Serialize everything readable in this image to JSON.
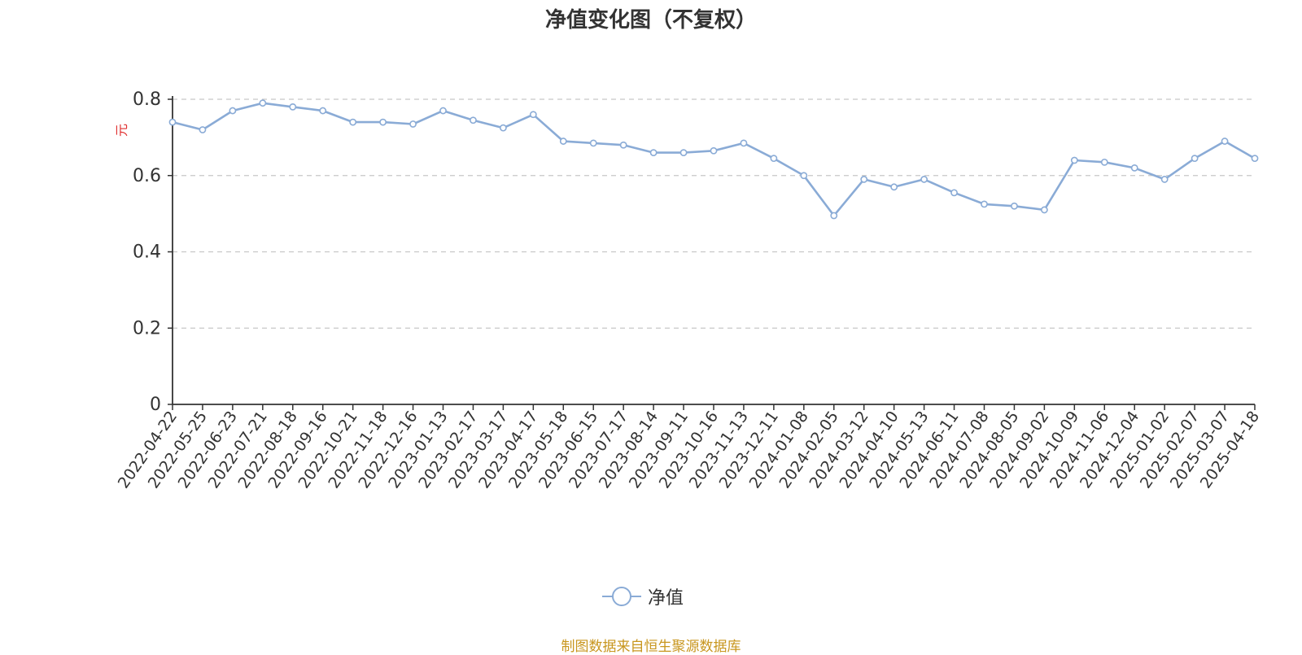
{
  "chart_data": {
    "type": "line",
    "title": "净值变化图（不复权）",
    "ylabel": "元",
    "ylim": [
      0,
      0.8
    ],
    "yticks": [
      0,
      0.2,
      0.4,
      0.6,
      0.8
    ],
    "ytick_labels": [
      "0",
      "0.2",
      "0.4",
      "0.6",
      "0.8"
    ],
    "grid": true,
    "legend_position": "bottom-center",
    "source_note": "制图数据来自恒生聚源数据库",
    "line_color": "#8aabd6",
    "x": [
      "2022-04-22",
      "2022-05-25",
      "2022-06-23",
      "2022-07-21",
      "2022-08-18",
      "2022-09-16",
      "2022-10-21",
      "2022-11-18",
      "2022-12-16",
      "2023-01-13",
      "2023-02-17",
      "2023-03-17",
      "2023-04-17",
      "2023-05-18",
      "2023-06-15",
      "2023-07-17",
      "2023-08-14",
      "2023-09-11",
      "2023-10-16",
      "2023-11-13",
      "2023-12-11",
      "2024-01-08",
      "2024-02-05",
      "2024-03-12",
      "2024-04-10",
      "2024-05-13",
      "2024-06-11",
      "2024-07-08",
      "2024-08-05",
      "2024-09-02",
      "2024-10-09",
      "2024-11-06",
      "2024-12-04",
      "2025-01-02",
      "2025-02-07",
      "2025-03-07",
      "2025-04-18"
    ],
    "series": [
      {
        "name": "净值",
        "values": [
          0.74,
          0.72,
          0.77,
          0.79,
          0.78,
          0.77,
          0.74,
          0.74,
          0.735,
          0.77,
          0.745,
          0.725,
          0.76,
          0.69,
          0.685,
          0.68,
          0.66,
          0.66,
          0.665,
          0.685,
          0.645,
          0.6,
          0.495,
          0.59,
          0.57,
          0.59,
          0.555,
          0.525,
          0.52,
          0.51,
          0.64,
          0.635,
          0.62,
          0.59,
          0.645,
          0.69,
          0.645
        ]
      }
    ]
  }
}
